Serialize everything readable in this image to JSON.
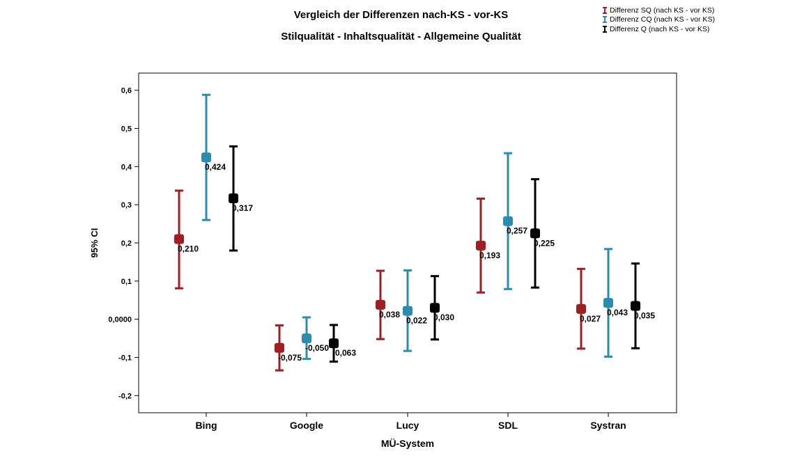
{
  "chart_data": {
    "type": "errorbar",
    "title": "Vergleich der Differenzen nach-KS - vor-KS",
    "subtitle": "Stilqualität - Inhaltsqualität - Allgemeine Qualität",
    "xlabel": "MÜ-System",
    "ylabel": "95% CI",
    "ylim": [
      -0.245,
      0.645
    ],
    "yticks": [
      -0.2,
      -0.1,
      0.0,
      0.1,
      0.2,
      0.3,
      0.4,
      0.5,
      0.6
    ],
    "ytick_labels": [
      "-0,2",
      "-0,1",
      "0,0000",
      "0,1",
      "0,2",
      "0,3",
      "0,4",
      "0,5",
      "0,6"
    ],
    "categories": [
      "Bing",
      "Google",
      "Lucy",
      "SDL",
      "Systran"
    ],
    "grid": false,
    "legend_position": "top-right",
    "series": [
      {
        "name": "Differenz SQ (nach KS - vor KS)",
        "color": "#a01e22",
        "mean": [
          0.21,
          -0.075,
          0.038,
          0.193,
          0.027
        ],
        "lower": [
          0.081,
          -0.134,
          -0.052,
          0.07,
          -0.077
        ],
        "upper": [
          0.337,
          -0.016,
          0.127,
          0.316,
          0.132
        ],
        "labels": [
          "0,210",
          "-0,075",
          "0,038",
          "0,193",
          "0,027"
        ]
      },
      {
        "name": "Differenz CQ (nach KS - vor KS)",
        "color": "#2b8cad",
        "mean": [
          0.424,
          -0.05,
          0.022,
          0.257,
          0.043
        ],
        "lower": [
          0.26,
          -0.104,
          -0.083,
          0.079,
          -0.098
        ],
        "upper": [
          0.588,
          0.005,
          0.128,
          0.435,
          0.184
        ],
        "labels": [
          "0,424",
          "-0,050",
          "0,022",
          "0,257",
          "0,043"
        ]
      },
      {
        "name": "Differenz Q (nach KS - vor KS)",
        "color": "#000000",
        "mean": [
          0.317,
          -0.063,
          0.03,
          0.225,
          0.035
        ],
        "lower": [
          0.18,
          -0.111,
          -0.053,
          0.083,
          -0.076
        ],
        "upper": [
          0.453,
          -0.015,
          0.113,
          0.367,
          0.146
        ],
        "labels": [
          "0,317",
          "-0,063",
          "0,030",
          "0,225",
          "0,035"
        ]
      }
    ]
  }
}
